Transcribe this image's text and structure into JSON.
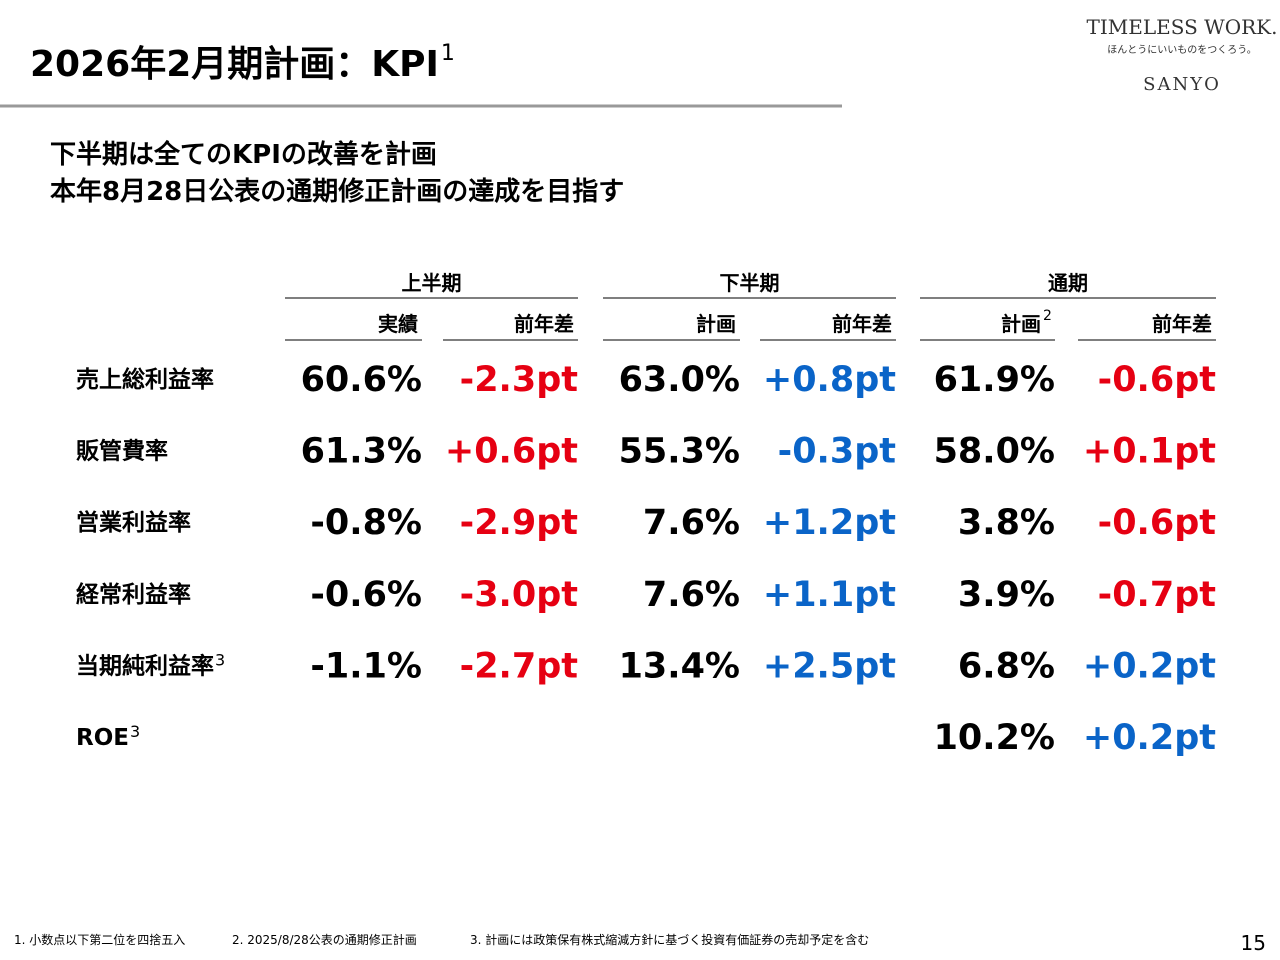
{
  "header": {
    "title": "2026年2月期計画：KPI",
    "title_note": "1",
    "logo": {
      "brand": "TIMELESS WORK.",
      "tagline": "ほんとうにいいものをつくろう。",
      "company": "SANYO"
    }
  },
  "subtitle": [
    "下半期は全てのKPIの改善を計画",
    "本年8月28日公表の通期修正計画の達成を目指す"
  ],
  "table": {
    "groups": [
      "上半期",
      "下半期",
      "通期"
    ],
    "columns": [
      {
        "label": "実績"
      },
      {
        "label": "前年差"
      },
      {
        "label": "計画"
      },
      {
        "label": "前年差"
      },
      {
        "label": "計画",
        "note": "2"
      },
      {
        "label": "前年差"
      }
    ],
    "rows": [
      {
        "label": "売上総利益率",
        "cells": [
          {
            "text": "60.6%",
            "color": "#000000"
          },
          {
            "text": "-2.3pt",
            "color": "#e60012"
          },
          {
            "text": "63.0%",
            "color": "#000000"
          },
          {
            "text": "+0.8pt",
            "color": "#0a64c8"
          },
          {
            "text": "61.9%",
            "color": "#000000"
          },
          {
            "text": "-0.6pt",
            "color": "#e60012"
          }
        ]
      },
      {
        "label": "販管費率",
        "cells": [
          {
            "text": "61.3%",
            "color": "#000000"
          },
          {
            "text": "+0.6pt",
            "color": "#e60012"
          },
          {
            "text": "55.3%",
            "color": "#000000"
          },
          {
            "text": "-0.3pt",
            "color": "#0a64c8"
          },
          {
            "text": "58.0%",
            "color": "#000000"
          },
          {
            "text": "+0.1pt",
            "color": "#e60012"
          }
        ]
      },
      {
        "label": "営業利益率",
        "cells": [
          {
            "text": "-0.8%",
            "color": "#000000"
          },
          {
            "text": "-2.9pt",
            "color": "#e60012"
          },
          {
            "text": "7.6%",
            "color": "#000000"
          },
          {
            "text": "+1.2pt",
            "color": "#0a64c8"
          },
          {
            "text": "3.8%",
            "color": "#000000"
          },
          {
            "text": "-0.6pt",
            "color": "#e60012"
          }
        ]
      },
      {
        "label": "経常利益率",
        "cells": [
          {
            "text": "-0.6%",
            "color": "#000000"
          },
          {
            "text": "-3.0pt",
            "color": "#e60012"
          },
          {
            "text": "7.6%",
            "color": "#000000"
          },
          {
            "text": "+1.1pt",
            "color": "#0a64c8"
          },
          {
            "text": "3.9%",
            "color": "#000000"
          },
          {
            "text": "-0.7pt",
            "color": "#e60012"
          }
        ]
      },
      {
        "label": "当期純利益率",
        "note": "3",
        "cells": [
          {
            "text": "-1.1%",
            "color": "#000000"
          },
          {
            "text": "-2.7pt",
            "color": "#e60012"
          },
          {
            "text": "13.4%",
            "color": "#000000"
          },
          {
            "text": "+2.5pt",
            "color": "#0a64c8"
          },
          {
            "text": "6.8%",
            "color": "#000000"
          },
          {
            "text": "+0.2pt",
            "color": "#0a64c8"
          }
        ]
      },
      {
        "label": "ROE",
        "note": "3",
        "cells": [
          null,
          null,
          null,
          null,
          {
            "text": "10.2%",
            "color": "#000000"
          },
          {
            "text": "+0.2pt",
            "color": "#0a64c8"
          }
        ]
      }
    ]
  },
  "footnotes": [
    "1. 小数点以下第二位を四捨五入",
    "2. 2025/8/28公表の通期修正計画",
    "3. 計画には政策保有株式縮減方針に基づく投資有価証券の売却予定を含む"
  ],
  "page_number": "15"
}
